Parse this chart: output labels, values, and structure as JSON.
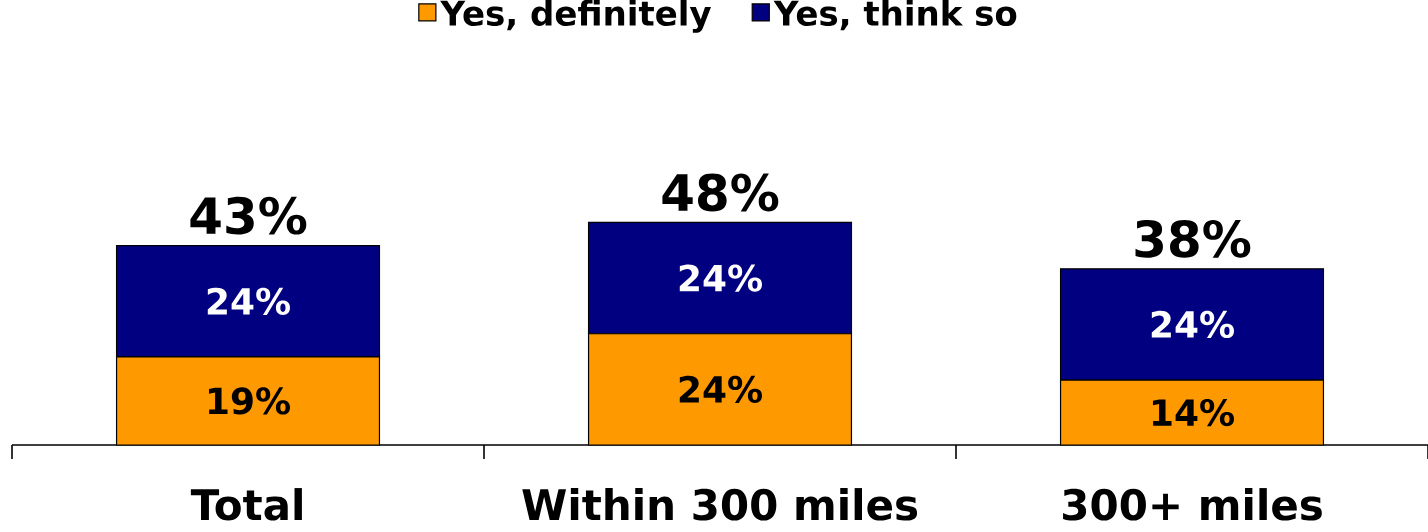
{
  "chart_data": {
    "type": "bar",
    "stacked": true,
    "categories": [
      "Total",
      "Within 300 miles",
      "300+ miles"
    ],
    "series": [
      {
        "name": "Yes, definitely",
        "color": "#ff9900",
        "values": [
          19,
          24,
          14
        ],
        "value_labels": [
          "19%",
          "24%",
          "14%"
        ]
      },
      {
        "name": "Yes, think so",
        "color": "#000080",
        "values": [
          24,
          24,
          24
        ],
        "value_labels": [
          "24%",
          "24%",
          "24%"
        ]
      }
    ],
    "totals": [
      "43%",
      "48%",
      "38%"
    ],
    "legend": "top",
    "tick_labels": "x"
  }
}
